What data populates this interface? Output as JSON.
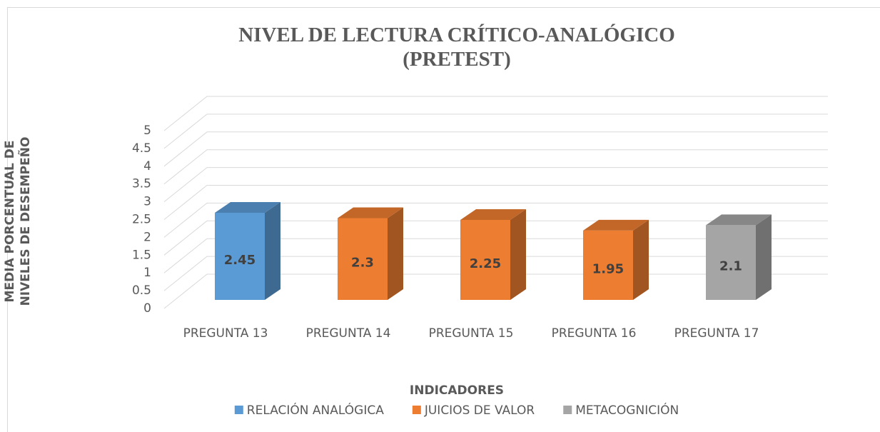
{
  "chart_data": {
    "type": "bar3d",
    "title": "NIVEL DE LECTURA CRÍTICO-ANALÓGICO (PRETEST)",
    "x_label": "INDICADORES",
    "y_label": "MEDIA PORCENTUAL DE NIVELES DE DESEMPEÑO",
    "categories": [
      "PREGUNTA 13",
      "PREGUNTA 14",
      "PREGUNTA 15",
      "PREGUNTA 16",
      "PREGUNTA 17"
    ],
    "series": [
      {
        "name": "RELACIÓN ANALÓGICA",
        "color": "#5b9bd5",
        "values": [
          2.45,
          null,
          null,
          null,
          null
        ]
      },
      {
        "name": "JUICIOS DE VALOR",
        "color": "#ed7d31",
        "values": [
          null,
          2.3,
          2.25,
          1.95,
          null
        ]
      },
      {
        "name": "METACOGNICIÓN",
        "color": "#a5a5a5",
        "values": [
          null,
          null,
          null,
          null,
          2.1
        ]
      }
    ],
    "ylim": [
      0,
      5
    ],
    "yticks": [
      0,
      0.5,
      1,
      1.5,
      2,
      2.5,
      3,
      3.5,
      4,
      4.5,
      5
    ],
    "grid": true,
    "legend": "bottom"
  }
}
